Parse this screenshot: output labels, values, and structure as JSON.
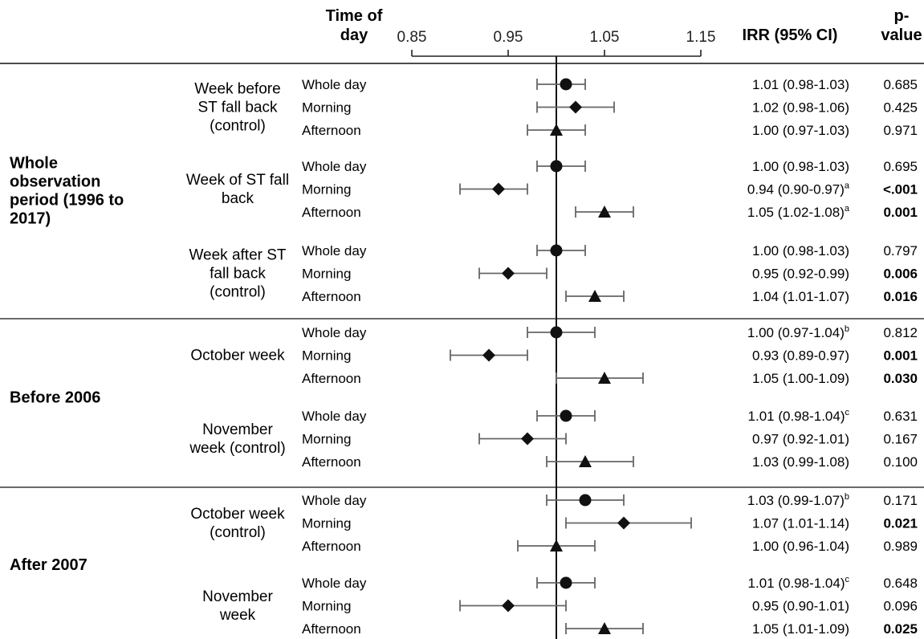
{
  "headers": {
    "time_of_day": [
      "Time of",
      "day"
    ],
    "irr": "IRR (95% CI)",
    "p_value": [
      "p-",
      "value"
    ]
  },
  "chart_data": {
    "type": "forest",
    "x_ticks": [
      "0.85",
      "0.95",
      "1.05",
      "1.15"
    ],
    "xlim": [
      0.85,
      1.15
    ],
    "reference_line": 1.0,
    "sections": [
      {
        "label": [
          "Whole",
          "observation",
          "period (1996 to",
          "2017)"
        ],
        "groups": [
          {
            "label": [
              "Week before",
              "ST fall back",
              "(control)"
            ],
            "rows": [
              {
                "time": "Whole day",
                "irr": 1.01,
                "ci": [
                  0.98,
                  1.03
                ],
                "marker": "circle",
                "irr_text": "1.01 (0.98-1.03)",
                "sup": "",
                "p": "0.685",
                "p_bold": false
              },
              {
                "time": "Morning",
                "irr": 1.02,
                "ci": [
                  0.98,
                  1.06
                ],
                "marker": "diamond",
                "irr_text": "1.02 (0.98-1.06)",
                "sup": "",
                "p": "0.425",
                "p_bold": false
              },
              {
                "time": "Afternoon",
                "irr": 1.0,
                "ci": [
                  0.97,
                  1.03
                ],
                "marker": "triangle",
                "irr_text": "1.00 (0.97-1.03)",
                "sup": "",
                "p": "0.971",
                "p_bold": false
              }
            ]
          },
          {
            "label": [
              "Week of ST fall",
              "back"
            ],
            "rows": [
              {
                "time": "Whole day",
                "irr": 1.0,
                "ci": [
                  0.98,
                  1.03
                ],
                "marker": "circle",
                "irr_text": "1.00 (0.98-1.03)",
                "sup": "",
                "p": "0.695",
                "p_bold": false
              },
              {
                "time": "Morning",
                "irr": 0.94,
                "ci": [
                  0.9,
                  0.97
                ],
                "marker": "diamond",
                "irr_text": "0.94 (0.90-0.97)",
                "sup": "a",
                "p": "<.001",
                "p_bold": true
              },
              {
                "time": "Afternoon",
                "irr": 1.05,
                "ci": [
                  1.02,
                  1.08
                ],
                "marker": "triangle",
                "irr_text": "1.05 (1.02-1.08)",
                "sup": "a",
                "p": "0.001",
                "p_bold": true
              }
            ]
          },
          {
            "label": [
              "Week after ST",
              "fall back",
              "(control)"
            ],
            "rows": [
              {
                "time": "Whole day",
                "irr": 1.0,
                "ci": [
                  0.98,
                  1.03
                ],
                "marker": "circle",
                "irr_text": "1.00 (0.98-1.03)",
                "sup": "",
                "p": "0.797",
                "p_bold": false
              },
              {
                "time": "Morning",
                "irr": 0.95,
                "ci": [
                  0.92,
                  0.99
                ],
                "marker": "diamond",
                "irr_text": "0.95 (0.92-0.99)",
                "sup": "",
                "p": "0.006",
                "p_bold": true
              },
              {
                "time": "Afternoon",
                "irr": 1.04,
                "ci": [
                  1.01,
                  1.07
                ],
                "marker": "triangle",
                "irr_text": "1.04 (1.01-1.07)",
                "sup": "",
                "p": "0.016",
                "p_bold": true
              }
            ]
          }
        ]
      },
      {
        "label": [
          "Before 2006"
        ],
        "groups": [
          {
            "label": [
              "October week"
            ],
            "rows": [
              {
                "time": "Whole day",
                "irr": 1.0,
                "ci": [
                  0.97,
                  1.04
                ],
                "marker": "circle",
                "irr_text": "1.00 (0.97-1.04)",
                "sup": "b",
                "p": "0.812",
                "p_bold": false
              },
              {
                "time": "Morning",
                "irr": 0.93,
                "ci": [
                  0.89,
                  0.97
                ],
                "marker": "diamond",
                "irr_text": "0.93 (0.89-0.97)",
                "sup": "",
                "p": "0.001",
                "p_bold": true
              },
              {
                "time": "Afternoon",
                "irr": 1.05,
                "ci": [
                  1.0,
                  1.09
                ],
                "marker": "triangle",
                "irr_text": "1.05 (1.00-1.09)",
                "sup": "",
                "p": "0.030",
                "p_bold": true
              }
            ]
          },
          {
            "label": [
              "November",
              "week (control)"
            ],
            "rows": [
              {
                "time": "Whole day",
                "irr": 1.01,
                "ci": [
                  0.98,
                  1.04
                ],
                "marker": "circle",
                "irr_text": "1.01 (0.98-1.04)",
                "sup": "c",
                "p": "0.631",
                "p_bold": false
              },
              {
                "time": "Morning",
                "irr": 0.97,
                "ci": [
                  0.92,
                  1.01
                ],
                "marker": "diamond",
                "irr_text": "0.97 (0.92-1.01)",
                "sup": "",
                "p": "0.167",
                "p_bold": false
              },
              {
                "time": "Afternoon",
                "irr": 1.03,
                "ci": [
                  0.99,
                  1.08
                ],
                "marker": "triangle",
                "irr_text": "1.03 (0.99-1.08)",
                "sup": "",
                "p": "0.100",
                "p_bold": false
              }
            ]
          }
        ]
      },
      {
        "label": [
          "After 2007"
        ],
        "groups": [
          {
            "label": [
              "October week",
              "(control)"
            ],
            "rows": [
              {
                "time": "Whole day",
                "irr": 1.03,
                "ci": [
                  0.99,
                  1.07
                ],
                "marker": "circle",
                "irr_text": "1.03 (0.99-1.07)",
                "sup": "b",
                "p": "0.171",
                "p_bold": false
              },
              {
                "time": "Morning",
                "irr": 1.07,
                "ci": [
                  1.01,
                  1.14
                ],
                "marker": "diamond",
                "irr_text": "1.07 (1.01-1.14)",
                "sup": "",
                "p": "0.021",
                "p_bold": true
              },
              {
                "time": "Afternoon",
                "irr": 1.0,
                "ci": [
                  0.96,
                  1.04
                ],
                "marker": "triangle",
                "irr_text": "1.00 (0.96-1.04)",
                "sup": "",
                "p": "0.989",
                "p_bold": false
              }
            ]
          },
          {
            "label": [
              "November",
              "week"
            ],
            "rows": [
              {
                "time": "Whole day",
                "irr": 1.01,
                "ci": [
                  0.98,
                  1.04
                ],
                "marker": "circle",
                "irr_text": "1.01 (0.98-1.04)",
                "sup": "c",
                "p": "0.648",
                "p_bold": false
              },
              {
                "time": "Morning",
                "irr": 0.95,
                "ci": [
                  0.9,
                  1.01
                ],
                "marker": "diamond",
                "irr_text": "0.95 (0.90-1.01)",
                "sup": "",
                "p": "0.096",
                "p_bold": false
              },
              {
                "time": "Afternoon",
                "irr": 1.05,
                "ci": [
                  1.01,
                  1.09
                ],
                "marker": "triangle",
                "irr_text": "1.05 (1.01-1.09)",
                "sup": "",
                "p": "0.025",
                "p_bold": true
              }
            ]
          }
        ]
      }
    ]
  }
}
